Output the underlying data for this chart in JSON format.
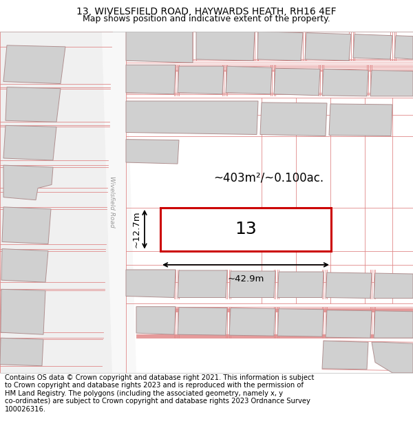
{
  "title_line1": "13, WIVELSFIELD ROAD, HAYWARDS HEATH, RH16 4EF",
  "title_line2": "Map shows position and indicative extent of the property.",
  "footer_text": "Contains OS data © Crown copyright and database right 2021. This information is subject\nto Crown copyright and database rights 2023 and is reproduced with the permission of\nHM Land Registry. The polygons (including the associated geometry, namely x, y\nco-ordinates) are subject to Crown copyright and database rights 2023 Ordnance Survey\n100026316.",
  "map_bg": "#f0f0f0",
  "road_fill": "#f8f8f8",
  "road_line_color": "#e08888",
  "building_fill": "#d0d0d0",
  "building_edge": "#b09090",
  "highlight_color": "#cc0000",
  "highlight_fill": "#ffffff",
  "area_text": "~403m²/~0.100ac.",
  "width_text": "~42.9m",
  "height_text": "~12.7m",
  "plot_number": "13",
  "road_name": "Wivelsfield Road",
  "title_fontsize": 10,
  "subtitle_fontsize": 9,
  "footer_fontsize": 7.2
}
